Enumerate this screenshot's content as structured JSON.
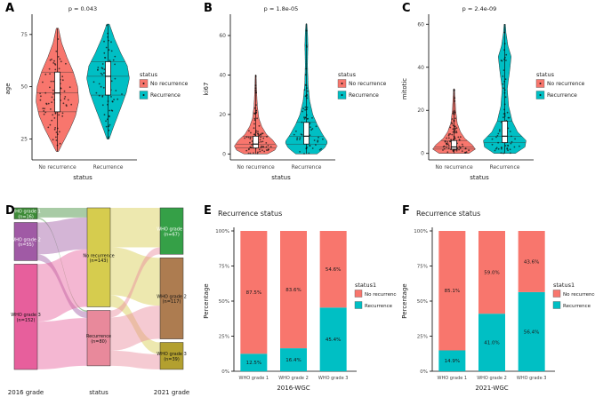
{
  "figure": {
    "background": "#ffffff",
    "colors": {
      "no_recurrence": "#F8766D",
      "recurrence": "#00BFC4"
    }
  },
  "chart_data": [
    {
      "panel_label": "A",
      "type": "violin",
      "title": "p = 0.043",
      "xlabel": "status",
      "ylabel": "age",
      "categories": [
        "No recurrence",
        "Recurrence"
      ],
      "ylim": [
        15,
        83
      ],
      "yticks": [
        25,
        50,
        75
      ],
      "legend_title": "status",
      "series": [
        {
          "name": "No recurrence",
          "color": "#F8766D",
          "median": 47,
          "q1": 38,
          "q3": 57,
          "min": 19,
          "max": 78,
          "n": 95,
          "seed": 11,
          "shape": [
            [
              19,
              0.05
            ],
            [
              24,
              0.3
            ],
            [
              30,
              0.6
            ],
            [
              36,
              0.85
            ],
            [
              43,
              1.0
            ],
            [
              50,
              0.95
            ],
            [
              57,
              0.75
            ],
            [
              64,
              0.45
            ],
            [
              71,
              0.2
            ],
            [
              78,
              0.05
            ]
          ]
        },
        {
          "name": "Recurrence",
          "color": "#00BFC4",
          "median": 55,
          "q1": 46,
          "q3": 62,
          "min": 25,
          "max": 80,
          "n": 72,
          "seed": 22,
          "shape": [
            [
              25,
              0.05
            ],
            [
              32,
              0.3
            ],
            [
              40,
              0.6
            ],
            [
              47,
              0.85
            ],
            [
              54,
              1.0
            ],
            [
              60,
              0.9
            ],
            [
              66,
              0.6
            ],
            [
              73,
              0.3
            ],
            [
              80,
              0.06
            ]
          ]
        }
      ]
    },
    {
      "panel_label": "B",
      "type": "violin",
      "title": "p = 1.8e-05",
      "xlabel": "status",
      "ylabel": "ki67",
      "categories": [
        "No recurrence",
        "Recurrence"
      ],
      "ylim": [
        -3,
        69
      ],
      "yticks": [
        0,
        20,
        40,
        60
      ],
      "legend_title": "status",
      "series": [
        {
          "name": "No recurrence",
          "color": "#F8766D",
          "median": 5,
          "q1": 3,
          "q3": 9,
          "min": 0,
          "max": 40,
          "n": 95,
          "seed": 33,
          "shape": [
            [
              0,
              0.55
            ],
            [
              2,
              0.9
            ],
            [
              4,
              1.0
            ],
            [
              7,
              0.8
            ],
            [
              10,
              0.5
            ],
            [
              14,
              0.28
            ],
            [
              18,
              0.15
            ],
            [
              24,
              0.08
            ],
            [
              30,
              0.05
            ],
            [
              40,
              0.02
            ]
          ]
        },
        {
          "name": "Recurrence",
          "color": "#00BFC4",
          "median": 9,
          "q1": 5,
          "q3": 16,
          "min": 0,
          "max": 66,
          "n": 72,
          "seed": 44,
          "shape": [
            [
              0,
              0.5
            ],
            [
              3,
              0.85
            ],
            [
              6,
              1.0
            ],
            [
              10,
              0.75
            ],
            [
              15,
              0.5
            ],
            [
              20,
              0.3
            ],
            [
              27,
              0.15
            ],
            [
              35,
              0.08
            ],
            [
              45,
              0.05
            ],
            [
              55,
              0.07
            ],
            [
              62,
              0.05
            ],
            [
              66,
              0.02
            ]
          ]
        }
      ]
    },
    {
      "panel_label": "C",
      "type": "violin",
      "title": "p = 2.4e-09",
      "xlabel": "status",
      "ylabel": "mitotic",
      "categories": [
        "No recurrence",
        "Recurrence"
      ],
      "ylim": [
        -3,
        63
      ],
      "yticks": [
        0,
        20,
        40,
        60
      ],
      "legend_title": "status",
      "series": [
        {
          "name": "No recurrence",
          "color": "#F8766D",
          "median": 3,
          "q1": 2,
          "q3": 6,
          "min": 0,
          "max": 30,
          "n": 95,
          "seed": 55,
          "shape": [
            [
              0,
              0.7
            ],
            [
              2,
              1.0
            ],
            [
              4,
              0.85
            ],
            [
              7,
              0.5
            ],
            [
              10,
              0.3
            ],
            [
              14,
              0.15
            ],
            [
              20,
              0.08
            ],
            [
              30,
              0.02
            ]
          ]
        },
        {
          "name": "Recurrence",
          "color": "#00BFC4",
          "median": 8,
          "q1": 5,
          "q3": 15,
          "min": 0,
          "max": 60,
          "n": 72,
          "seed": 66,
          "shape": [
            [
              0,
              0.5
            ],
            [
              3,
              0.95
            ],
            [
              6,
              1.0
            ],
            [
              10,
              0.6
            ],
            [
              15,
              0.35
            ],
            [
              22,
              0.18
            ],
            [
              30,
              0.12
            ],
            [
              40,
              0.25
            ],
            [
              45,
              0.3
            ],
            [
              50,
              0.15
            ],
            [
              56,
              0.06
            ],
            [
              60,
              0.03
            ]
          ]
        }
      ]
    },
    {
      "panel_label": "D",
      "type": "alluvial",
      "axes": [
        "2016 grade",
        "status",
        "2021 grade"
      ],
      "columns": [
        {
          "nodes": [
            {
              "name": "WHO grade 1",
              "sub": "(n=16)",
              "n": 16,
              "color": "#3d8b37"
            },
            {
              "name": "WHO grade 2",
              "sub": "(n=55)",
              "n": 55,
              "color": "#a05aa5"
            },
            {
              "name": "WHO grade 3",
              "sub": "(n=152)",
              "n": 152,
              "color": "#e75f9c"
            }
          ]
        },
        {
          "nodes": [
            {
              "name": "No recurrence",
              "sub": "(n=143)",
              "n": 143,
              "color": "#d6cc4e"
            },
            {
              "name": "Recurrence",
              "sub": "(n=80)",
              "n": 80,
              "color": "#e8899b"
            }
          ]
        },
        {
          "nodes": [
            {
              "name": "WHO grade 1",
              "sub": "(n=67)",
              "n": 67,
              "color": "#35a047"
            },
            {
              "name": "WHO grade 2",
              "sub": "(n=117)",
              "n": 117,
              "color": "#ad7c50"
            },
            {
              "name": "WHO grade 3",
              "sub": "(n=39)",
              "n": 39,
              "color": "#b3a02f"
            }
          ]
        }
      ],
      "flows": [
        {
          "from": [
            0,
            0
          ],
          "to": [
            1,
            0
          ],
          "n": 14
        },
        {
          "from": [
            0,
            0
          ],
          "to": [
            1,
            1
          ],
          "n": 2
        },
        {
          "from": [
            0,
            1
          ],
          "to": [
            1,
            0
          ],
          "n": 46
        },
        {
          "from": [
            0,
            1
          ],
          "to": [
            1,
            1
          ],
          "n": 9
        },
        {
          "from": [
            0,
            2
          ],
          "to": [
            1,
            0
          ],
          "n": 83
        },
        {
          "from": [
            0,
            2
          ],
          "to": [
            1,
            1
          ],
          "n": 69
        },
        {
          "from": [
            1,
            0
          ],
          "to": [
            2,
            0
          ],
          "n": 57
        },
        {
          "from": [
            1,
            0
          ],
          "to": [
            2,
            1
          ],
          "n": 69
        },
        {
          "from": [
            1,
            0
          ],
          "to": [
            2,
            2
          ],
          "n": 17
        },
        {
          "from": [
            1,
            1
          ],
          "to": [
            2,
            0
          ],
          "n": 10
        },
        {
          "from": [
            1,
            1
          ],
          "to": [
            2,
            1
          ],
          "n": 48
        },
        {
          "from": [
            1,
            1
          ],
          "to": [
            2,
            2
          ],
          "n": 22
        }
      ]
    },
    {
      "panel_label": "E",
      "type": "stacked_bar",
      "title": "Recurrence status",
      "xlabel": "2016-WGC",
      "ylabel": "Percentage",
      "categories": [
        "WHO grade 1",
        "WHO grade 2",
        "WHO grade 3"
      ],
      "yticks": [
        "0%",
        "25%",
        "50%",
        "75%",
        "100%"
      ],
      "legend_title": "status1",
      "series": [
        {
          "name": "No recurrence",
          "color": "#F8766D",
          "values": [
            87.5,
            83.6,
            54.6
          ],
          "labels": [
            "87.5%",
            "83.6%",
            "54.6%"
          ]
        },
        {
          "name": "Recurrence",
          "color": "#00BFC4",
          "values": [
            12.5,
            16.4,
            45.4
          ],
          "labels": [
            "12.5%",
            "16.4%",
            "45.4%"
          ]
        }
      ]
    },
    {
      "panel_label": "F",
      "type": "stacked_bar",
      "title": "Recurrence status",
      "xlabel": "2021-WGC",
      "ylabel": "Percentage",
      "categories": [
        "WHO grade 1",
        "WHO grade 2",
        "WHO grade 3"
      ],
      "yticks": [
        "0%",
        "25%",
        "50%",
        "75%",
        "100%"
      ],
      "legend_title": "status1",
      "series": [
        {
          "name": "No recurrence",
          "color": "#F8766D",
          "values": [
            85.1,
            59.0,
            43.6
          ],
          "labels": [
            "85.1%",
            "59.0%",
            "43.6%"
          ]
        },
        {
          "name": "Recurrence",
          "color": "#00BFC4",
          "values": [
            14.9,
            41.0,
            56.4
          ],
          "labels": [
            "14.9%",
            "41.0%",
            "56.4%"
          ]
        }
      ]
    }
  ]
}
